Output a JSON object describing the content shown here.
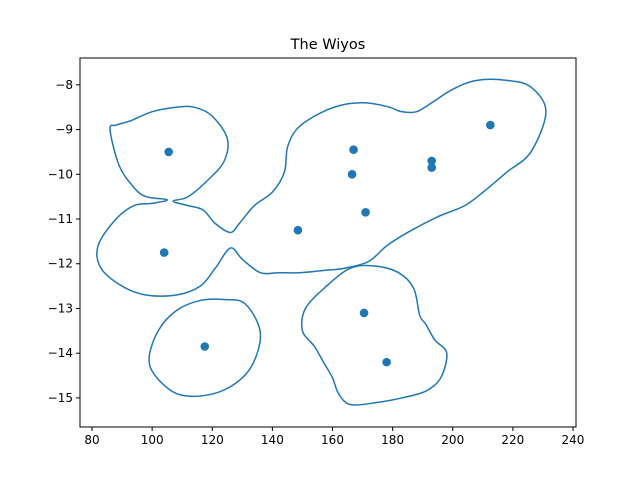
{
  "chart_data": {
    "type": "scatter",
    "title": "The Wiyos",
    "xlabel": "",
    "ylabel": "",
    "xlim": [
      76,
      241
    ],
    "ylim": [
      -15.65,
      -7.4
    ],
    "xticks": [
      80,
      100,
      120,
      140,
      160,
      180,
      200,
      220,
      240
    ],
    "yticks": [
      -15,
      -14,
      -13,
      -12,
      -11,
      -10,
      -9,
      -8
    ],
    "grid": false,
    "colors": {
      "series": "#1f77b4"
    },
    "points": [
      {
        "x": 105.5,
        "y": -9.5
      },
      {
        "x": 104,
        "y": -11.75
      },
      {
        "x": 117.5,
        "y": -13.85
      },
      {
        "x": 148.5,
        "y": -11.25
      },
      {
        "x": 167,
        "y": -9.45
      },
      {
        "x": 166.5,
        "y": -10.0
      },
      {
        "x": 171,
        "y": -10.85
      },
      {
        "x": 193,
        "y": -9.7
      },
      {
        "x": 193,
        "y": -9.85
      },
      {
        "x": 212.5,
        "y": -8.9
      },
      {
        "x": 170.5,
        "y": -13.1
      },
      {
        "x": 178,
        "y": -14.2
      }
    ],
    "contours": [
      [
        [
          105,
          -10.57
        ],
        [
          98,
          -10.5
        ],
        [
          94,
          -10.3
        ],
        [
          89,
          -9.8
        ],
        [
          86,
          -9.0
        ],
        [
          88,
          -8.9
        ],
        [
          93,
          -8.8
        ],
        [
          100,
          -8.6
        ],
        [
          108,
          -8.5
        ],
        [
          114,
          -8.5
        ],
        [
          120,
          -8.7
        ],
        [
          125,
          -9.2
        ],
        [
          124,
          -9.7
        ],
        [
          119,
          -10.1
        ],
        [
          112,
          -10.5
        ],
        [
          107,
          -10.6
        ],
        [
          112,
          -10.7
        ],
        [
          117,
          -10.8
        ],
        [
          121,
          -11.1
        ],
        [
          126,
          -11.3
        ],
        [
          129,
          -11.1
        ],
        [
          134,
          -10.7
        ],
        [
          140,
          -10.4
        ],
        [
          144,
          -9.95
        ],
        [
          145,
          -9.4
        ],
        [
          148,
          -9.0
        ],
        [
          154,
          -8.7
        ],
        [
          162,
          -8.47
        ],
        [
          170,
          -8.4
        ],
        [
          178,
          -8.48
        ],
        [
          183,
          -8.6
        ],
        [
          188,
          -8.6
        ],
        [
          193,
          -8.4
        ],
        [
          200,
          -8.1
        ],
        [
          208,
          -7.9
        ],
        [
          218,
          -7.9
        ],
        [
          226,
          -8.05
        ],
        [
          231,
          -8.6
        ],
        [
          226,
          -9.5
        ],
        [
          218,
          -9.95
        ],
        [
          211,
          -10.35
        ],
        [
          204,
          -10.7
        ],
        [
          195,
          -10.95
        ],
        [
          185,
          -11.3
        ],
        [
          178,
          -11.6
        ],
        [
          172,
          -11.95
        ],
        [
          164,
          -12.1
        ],
        [
          157,
          -12.15
        ],
        [
          149,
          -12.2
        ],
        [
          142,
          -12.2
        ],
        [
          136,
          -12.2
        ],
        [
          130,
          -11.9
        ],
        [
          126,
          -11.65
        ],
        [
          121,
          -12.1
        ],
        [
          116,
          -12.5
        ],
        [
          108,
          -12.7
        ],
        [
          98,
          -12.7
        ],
        [
          90,
          -12.5
        ],
        [
          83,
          -12.1
        ],
        [
          82,
          -11.6
        ],
        [
          88,
          -11.0
        ],
        [
          94,
          -10.7
        ],
        [
          100,
          -10.65
        ],
        [
          105,
          -10.57
        ]
      ],
      [
        [
          131,
          -12.9
        ],
        [
          136,
          -13.55
        ],
        [
          133,
          -14.3
        ],
        [
          126,
          -14.75
        ],
        [
          117,
          -14.95
        ],
        [
          108,
          -14.9
        ],
        [
          101,
          -14.5
        ],
        [
          99,
          -14.1
        ],
        [
          102,
          -13.5
        ],
        [
          108,
          -13.05
        ],
        [
          116,
          -12.82
        ],
        [
          124,
          -12.8
        ],
        [
          131,
          -12.9
        ]
      ],
      [
        [
          158,
          -12.5
        ],
        [
          166,
          -12.1
        ],
        [
          174,
          -12.05
        ],
        [
          182,
          -12.2
        ],
        [
          187,
          -12.55
        ],
        [
          189,
          -13.15
        ],
        [
          191,
          -13.35
        ],
        [
          194,
          -13.7
        ],
        [
          198,
          -14.0
        ],
        [
          196,
          -14.55
        ],
        [
          191,
          -14.85
        ],
        [
          183,
          -15.0
        ],
        [
          175,
          -15.1
        ],
        [
          166,
          -15.15
        ],
        [
          162,
          -14.9
        ],
        [
          160,
          -14.55
        ],
        [
          157,
          -14.2
        ],
        [
          154,
          -13.85
        ],
        [
          150,
          -13.5
        ],
        [
          151,
          -13.0
        ],
        [
          158,
          -12.5
        ]
      ]
    ]
  }
}
